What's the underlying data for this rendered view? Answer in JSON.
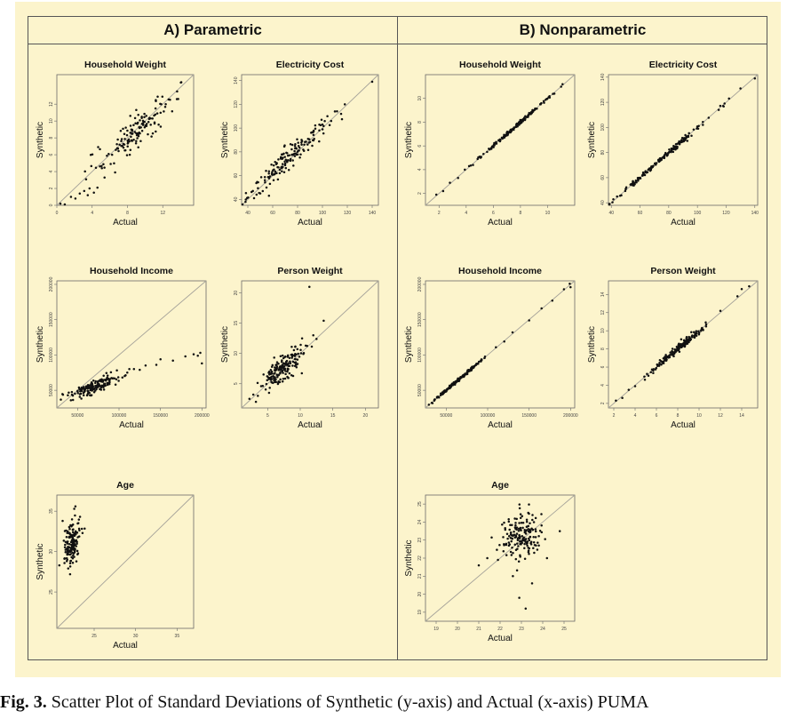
{
  "panel_titles": {
    "a": "A) Parametric",
    "b": "B) Nonparametric"
  },
  "caption": {
    "label": "Fig. 3.",
    "text": "Scatter Plot of Standard Deviations of Synthetic (y-axis) and Actual (x-axis) PUMA"
  },
  "chart_data": [
    {
      "id": "a-household-weight",
      "type": "scatter",
      "title": "Household Weight",
      "xlabel": "Actual",
      "ylabel": "Synthetic",
      "xlim": [
        0,
        15.5
      ],
      "ylim": [
        0,
        15.5
      ],
      "xticks": [
        0,
        4,
        8,
        12
      ],
      "yticks": [
        0,
        2,
        4,
        6,
        8,
        10,
        12
      ],
      "identity_line": true,
      "cloud": {
        "n": 140,
        "mean_x": 9.0,
        "mean_y": 8.8,
        "sd_x": 2.1,
        "sd_y": 2.1,
        "corr": 0.88
      },
      "points": [
        [
          0.4,
          0.2
        ],
        [
          0.9,
          -0.2
        ],
        [
          1.6,
          1.0
        ],
        [
          2.1,
          0.8
        ],
        [
          2.6,
          1.4
        ],
        [
          3.1,
          1.7
        ],
        [
          3.5,
          1.2
        ],
        [
          3.7,
          2.0
        ],
        [
          4.2,
          1.5
        ],
        [
          4.6,
          2.1
        ],
        [
          5.4,
          3.3
        ],
        [
          5.1,
          4.4
        ],
        [
          6.1,
          4.9
        ],
        [
          6.6,
          3.9
        ],
        [
          13.6,
          12.6
        ],
        [
          14.1,
          14.6
        ]
      ]
    },
    {
      "id": "a-electricity-cost",
      "type": "scatter",
      "title": "Electricity Cost",
      "xlabel": "Actual",
      "ylabel": "Synthetic",
      "xlim": [
        35,
        145
      ],
      "ylim": [
        35,
        145
      ],
      "xticks": [
        40,
        60,
        80,
        100,
        120,
        140
      ],
      "yticks": [
        40,
        60,
        80,
        100,
        120,
        140
      ],
      "identity_line": true,
      "cloud": {
        "n": 150,
        "mean_x": 72,
        "mean_y": 74,
        "sd_x": 15,
        "sd_y": 15,
        "corr": 0.96
      },
      "points": [
        [
          45,
          41
        ],
        [
          47,
          44
        ],
        [
          50,
          45
        ],
        [
          52,
          47
        ],
        [
          55,
          50
        ],
        [
          57,
          43
        ],
        [
          100,
          103
        ],
        [
          104,
          110
        ],
        [
          107,
          106
        ],
        [
          110,
          114
        ],
        [
          115,
          112
        ],
        [
          118,
          120
        ],
        [
          140,
          139
        ]
      ]
    },
    {
      "id": "a-household-income",
      "type": "scatter",
      "title": "Household Income",
      "xlabel": "Actual",
      "ylabel": "Synthetic",
      "xlim": [
        25000,
        205000
      ],
      "ylim": [
        25000,
        205000
      ],
      "xticks": [
        50000,
        100000,
        150000,
        200000
      ],
      "yticks": [
        50000,
        100000,
        150000,
        200000
      ],
      "identity_line": true,
      "cloud": {
        "n": 170,
        "mean_x": 70000,
        "mean_y": 56000,
        "sd_x": 14000,
        "sd_y": 8000,
        "corr": 0.85
      },
      "points": [
        [
          110000,
          75000
        ],
        [
          118000,
          80000
        ],
        [
          125000,
          79000
        ],
        [
          132000,
          85000
        ],
        [
          145000,
          86000
        ],
        [
          150000,
          94000
        ],
        [
          165000,
          92000
        ],
        [
          180000,
          98000
        ],
        [
          190000,
          101000
        ],
        [
          198000,
          103000
        ],
        [
          200000,
          88000
        ],
        [
          195000,
          99000
        ]
      ]
    },
    {
      "id": "a-person-weight",
      "type": "scatter",
      "title": "Person Weight",
      "xlabel": "Actual",
      "ylabel": "Synthetic",
      "xlim": [
        1,
        22
      ],
      "ylim": [
        1,
        22
      ],
      "xticks": [
        5,
        10,
        15,
        20
      ],
      "yticks": [
        5,
        10,
        15,
        20
      ],
      "identity_line": true,
      "cloud": {
        "n": 170,
        "mean_x": 7.5,
        "mean_y": 7.6,
        "sd_x": 1.6,
        "sd_y": 1.8,
        "corr": 0.8
      },
      "points": [
        [
          2.2,
          2.5
        ],
        [
          2.8,
          3.2
        ],
        [
          3.5,
          3.0
        ],
        [
          4.0,
          4.6
        ],
        [
          12.0,
          13.0
        ],
        [
          12.5,
          12.4
        ],
        [
          13.6,
          15.4
        ],
        [
          11.4,
          21.0
        ]
      ]
    },
    {
      "id": "a-age",
      "type": "scatter",
      "title": "Age",
      "xlabel": "Actual",
      "ylabel": "Synthetic",
      "xlim": [
        20.5,
        37
      ],
      "ylim": [
        20.5,
        37
      ],
      "xticks": [
        25,
        30,
        35
      ],
      "yticks": [
        25,
        30,
        35
      ],
      "identity_line": true,
      "cloud": {
        "n": 150,
        "mean_x": 22.3,
        "mean_y": 31.0,
        "sd_x": 0.45,
        "sd_y": 1.3,
        "corr": 0.25
      },
      "points": [
        [
          20.8,
          28.3
        ],
        [
          21.2,
          33.8
        ],
        [
          22.1,
          27.2
        ],
        [
          23.3,
          34.3
        ],
        [
          23.6,
          32.3
        ],
        [
          22.6,
          35.3
        ]
      ]
    },
    {
      "id": "b-household-weight",
      "type": "scatter",
      "title": "Household Weight",
      "xlabel": "Actual",
      "ylabel": "Synthetic",
      "xlim": [
        1,
        12
      ],
      "ylim": [
        1,
        12
      ],
      "xticks": [
        2,
        4,
        6,
        8,
        10
      ],
      "yticks": [
        2,
        4,
        6,
        8,
        10
      ],
      "identity_line": true,
      "cloud": {
        "n": 160,
        "mean_x": 7.5,
        "mean_y": 7.5,
        "sd_x": 1.2,
        "sd_y": 1.2,
        "corr": 0.998
      },
      "points": [
        [
          1.8,
          1.9
        ],
        [
          2.3,
          2.2
        ],
        [
          2.8,
          2.9
        ],
        [
          3.4,
          3.3
        ],
        [
          3.9,
          4.0
        ],
        [
          4.5,
          4.4
        ],
        [
          5.0,
          5.1
        ],
        [
          10.5,
          10.4
        ],
        [
          11.1,
          11.2
        ]
      ]
    },
    {
      "id": "b-electricity-cost",
      "type": "scatter",
      "title": "Electricity Cost",
      "xlabel": "Actual",
      "ylabel": "Synthetic",
      "xlim": [
        38,
        142
      ],
      "ylim": [
        38,
        142
      ],
      "xticks": [
        40,
        60,
        80,
        100,
        120,
        140
      ],
      "yticks": [
        40,
        60,
        80,
        100,
        120,
        140
      ],
      "identity_line": true,
      "cloud": {
        "n": 160,
        "mean_x": 76,
        "mean_y": 76,
        "sd_x": 16,
        "sd_y": 16,
        "corr": 0.998
      },
      "points": [
        [
          44,
          45
        ],
        [
          47,
          46
        ],
        [
          50,
          51
        ],
        [
          118,
          117
        ],
        [
          122,
          123
        ],
        [
          130,
          131
        ],
        [
          140,
          139
        ]
      ]
    },
    {
      "id": "b-household-income",
      "type": "scatter",
      "title": "Household Income",
      "xlabel": "Actual",
      "ylabel": "Synthetic",
      "xlim": [
        25000,
        205000
      ],
      "ylim": [
        25000,
        205000
      ],
      "xticks": [
        50000,
        100000,
        150000,
        200000
      ],
      "yticks": [
        50000,
        100000,
        150000,
        200000
      ],
      "identity_line": true,
      "cloud": {
        "n": 170,
        "mean_x": 65000,
        "mean_y": 65000,
        "sd_x": 14000,
        "sd_y": 14000,
        "corr": 0.997
      },
      "points": [
        [
          110000,
          111000
        ],
        [
          120000,
          119000
        ],
        [
          130000,
          132000
        ],
        [
          150000,
          149000
        ],
        [
          165000,
          166000
        ],
        [
          178000,
          177000
        ],
        [
          192000,
          193000
        ],
        [
          199000,
          201000
        ],
        [
          200000,
          196000
        ]
      ]
    },
    {
      "id": "b-person-weight",
      "type": "scatter",
      "title": "Person Weight",
      "xlabel": "Actual",
      "ylabel": "Synthetic",
      "xlim": [
        1.5,
        15.5
      ],
      "ylim": [
        1.5,
        15.5
      ],
      "xticks": [
        2,
        4,
        6,
        8,
        10,
        12,
        14
      ],
      "yticks": [
        2,
        4,
        6,
        8,
        10,
        12,
        14
      ],
      "identity_line": true,
      "cloud": {
        "n": 170,
        "mean_x": 8.0,
        "mean_y": 8.0,
        "sd_x": 1.3,
        "sd_y": 1.3,
        "corr": 0.99
      },
      "points": [
        [
          2.2,
          2.3
        ],
        [
          2.8,
          2.6
        ],
        [
          3.4,
          3.5
        ],
        [
          4.0,
          3.9
        ],
        [
          12.0,
          12.2
        ],
        [
          13.6,
          13.8
        ],
        [
          14.0,
          14.6
        ],
        [
          14.7,
          14.9
        ]
      ]
    },
    {
      "id": "b-age",
      "type": "scatter",
      "title": "Age",
      "xlabel": "Actual",
      "ylabel": "Synthetic",
      "xlim": [
        18.5,
        25.5
      ],
      "ylim": [
        18.5,
        25.5
      ],
      "xticks": [
        19,
        20,
        21,
        22,
        23,
        24,
        25
      ],
      "yticks": [
        19,
        20,
        21,
        22,
        23,
        24,
        25
      ],
      "identity_line": true,
      "cloud": {
        "n": 170,
        "mean_x": 23.0,
        "mean_y": 23.2,
        "sd_x": 0.45,
        "sd_y": 0.55,
        "corr": 0.15
      },
      "points": [
        [
          21.0,
          21.6
        ],
        [
          21.4,
          22.0
        ],
        [
          21.9,
          21.9
        ],
        [
          24.8,
          23.5
        ],
        [
          22.9,
          19.8
        ],
        [
          23.2,
          19.2
        ],
        [
          23.5,
          20.6
        ],
        [
          22.6,
          21.0
        ],
        [
          24.2,
          22.0
        ]
      ]
    }
  ]
}
